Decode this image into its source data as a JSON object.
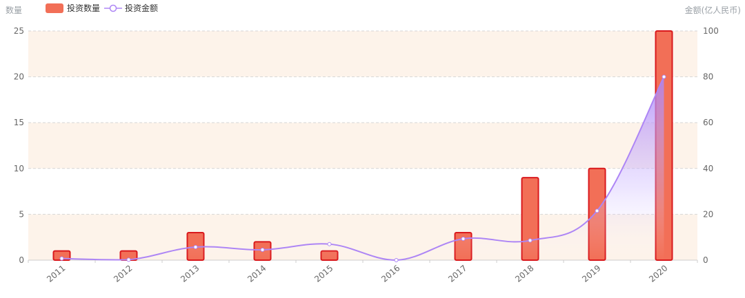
{
  "chart_data": {
    "type": "bar",
    "categories": [
      "2011",
      "2012",
      "2013",
      "2014",
      "2015",
      "2016",
      "2017",
      "2018",
      "2019",
      "2020"
    ],
    "series": [
      {
        "name": "投资数量",
        "type": "bar",
        "axis": "left",
        "values": [
          1,
          1,
          3,
          2,
          1,
          0,
          3,
          9,
          10,
          25
        ]
      },
      {
        "name": "投资金额",
        "type": "line",
        "axis": "right",
        "smooth": true,
        "area": true,
        "values": [
          0.7,
          0.2,
          5.7,
          4.5,
          7.0,
          0.0,
          9.3,
          8.6,
          21.5,
          80.0
        ]
      }
    ],
    "ylabel": "数量",
    "ylabel_right": "金额(亿人民币)",
    "ylim": [
      0,
      25
    ],
    "ylim_right": [
      0,
      100
    ],
    "yticks": [
      0,
      5,
      10,
      15,
      20,
      25
    ],
    "yticks_right": [
      0,
      20,
      40,
      60,
      80,
      100
    ],
    "grid": true,
    "legend_position": "top-left"
  },
  "colors": {
    "bar_fill": "#f26f57",
    "bar_border": "#d9181c",
    "line": "#ad85f5",
    "band": "#fdf3ea",
    "grid": "#d6d6d6",
    "axis_text": "#666666"
  }
}
